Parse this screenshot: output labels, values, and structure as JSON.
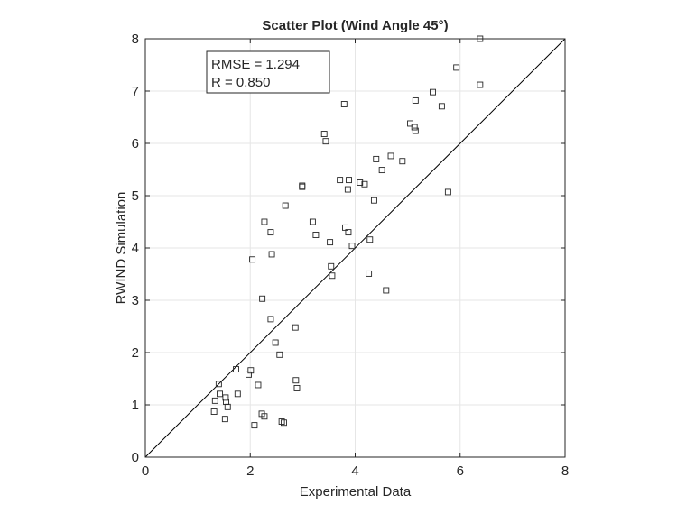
{
  "chart_data": {
    "type": "scatter",
    "title": "Scatter Plot (Wind Angle 45°)",
    "xlabel": "Experimental Data",
    "ylabel": "RWIND Simulation",
    "xlim": [
      0,
      8
    ],
    "ylim": [
      0,
      8
    ],
    "xticks": [
      "0",
      "2",
      "4",
      "6",
      "8"
    ],
    "yticks": [
      "0",
      "1",
      "2",
      "3",
      "4",
      "5",
      "6",
      "7",
      "8"
    ],
    "grid": true,
    "marker": "square",
    "reference_line": "y = x",
    "stats": [
      "RMSE = 1.294",
      "R = 0.850"
    ],
    "points": [
      [
        6.38,
        8.0
      ],
      [
        5.93,
        7.45
      ],
      [
        6.38,
        7.12
      ],
      [
        5.48,
        6.98
      ],
      [
        5.15,
        6.82
      ],
      [
        5.65,
        6.71
      ],
      [
        3.79,
        6.75
      ],
      [
        5.05,
        6.38
      ],
      [
        5.13,
        6.31
      ],
      [
        5.15,
        6.24
      ],
      [
        3.41,
        6.18
      ],
      [
        3.44,
        6.04
      ],
      [
        4.68,
        5.76
      ],
      [
        4.4,
        5.7
      ],
      [
        4.9,
        5.66
      ],
      [
        4.51,
        5.49
      ],
      [
        3.71,
        5.3
      ],
      [
        3.88,
        5.3
      ],
      [
        4.09,
        5.25
      ],
      [
        4.18,
        5.22
      ],
      [
        2.99,
        5.19
      ],
      [
        2.99,
        5.17
      ],
      [
        3.86,
        5.12
      ],
      [
        5.77,
        5.07
      ],
      [
        4.36,
        4.91
      ],
      [
        2.67,
        4.81
      ],
      [
        2.27,
        4.5
      ],
      [
        3.19,
        4.5
      ],
      [
        3.81,
        4.39
      ],
      [
        2.39,
        4.3
      ],
      [
        3.87,
        4.3
      ],
      [
        3.25,
        4.25
      ],
      [
        4.28,
        4.16
      ],
      [
        3.52,
        4.11
      ],
      [
        3.94,
        4.04
      ],
      [
        2.41,
        3.88
      ],
      [
        2.04,
        3.78
      ],
      [
        3.54,
        3.65
      ],
      [
        4.26,
        3.51
      ],
      [
        3.56,
        3.47
      ],
      [
        4.59,
        3.19
      ],
      [
        2.23,
        3.03
      ],
      [
        2.39,
        2.64
      ],
      [
        2.86,
        2.48
      ],
      [
        2.48,
        2.19
      ],
      [
        2.56,
        1.96
      ],
      [
        1.73,
        1.68
      ],
      [
        2.01,
        1.66
      ],
      [
        1.97,
        1.58
      ],
      [
        2.87,
        1.47
      ],
      [
        1.4,
        1.4
      ],
      [
        2.15,
        1.38
      ],
      [
        2.89,
        1.32
      ],
      [
        1.76,
        1.21
      ],
      [
        1.42,
        1.21
      ],
      [
        1.53,
        1.14
      ],
      [
        1.33,
        1.08
      ],
      [
        1.54,
        1.06
      ],
      [
        1.57,
        0.96
      ],
      [
        1.31,
        0.87
      ],
      [
        2.22,
        0.83
      ],
      [
        2.27,
        0.78
      ],
      [
        1.52,
        0.73
      ],
      [
        2.6,
        0.68
      ],
      [
        2.64,
        0.66
      ],
      [
        2.08,
        0.61
      ]
    ]
  }
}
